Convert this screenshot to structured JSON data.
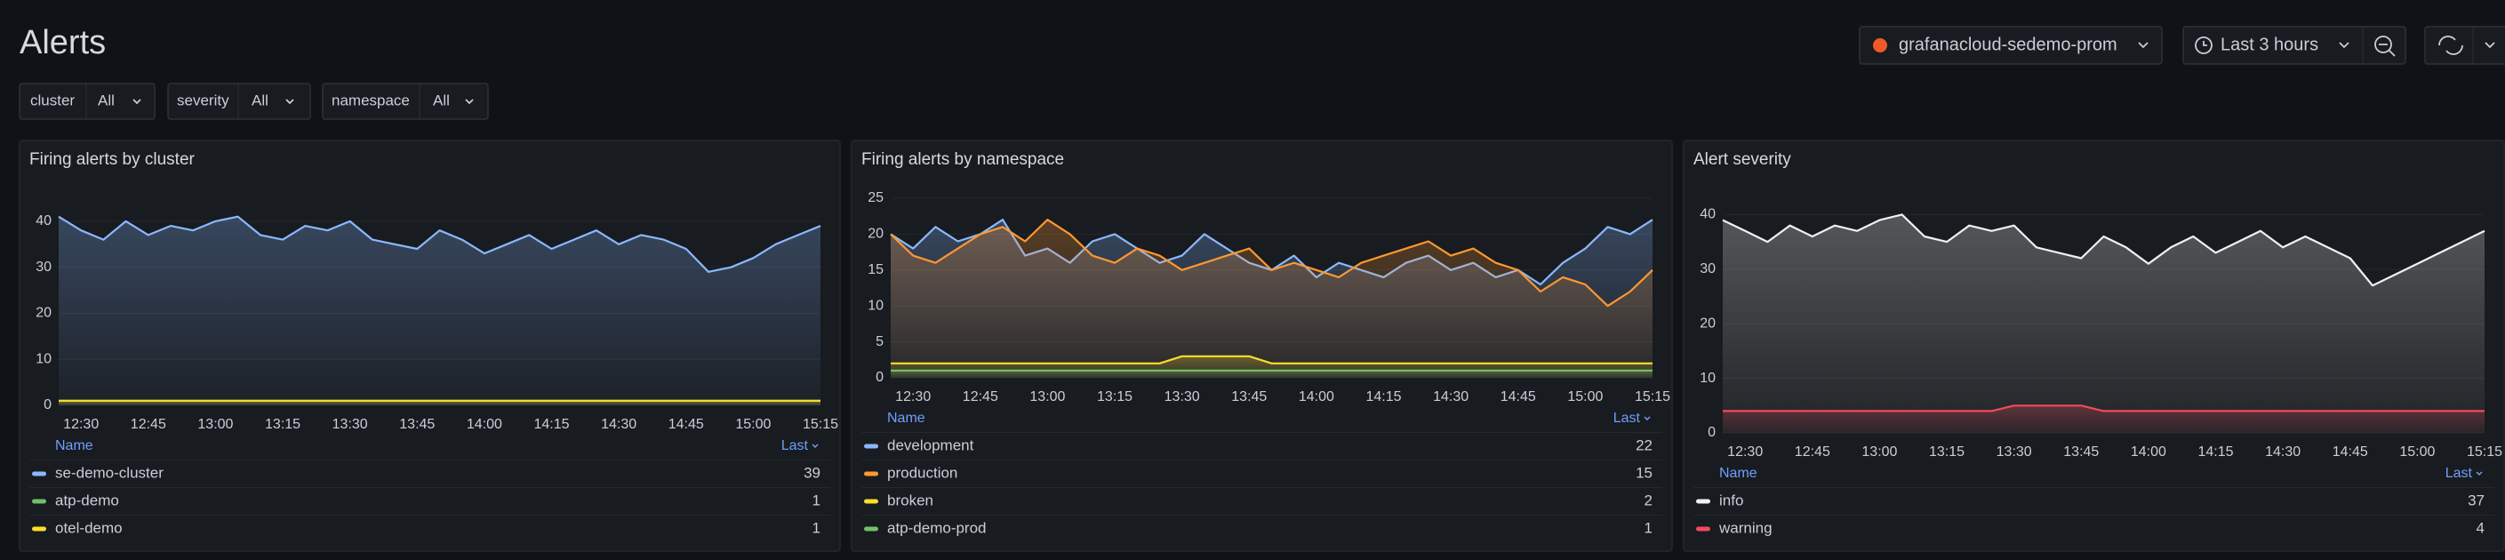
{
  "header": {
    "title": "Alerts",
    "datasource": "grafanacloud-sedemo-prom",
    "time_range": "Last 3 hours"
  },
  "filters": [
    {
      "label": "cluster",
      "value": "All"
    },
    {
      "label": "severity",
      "value": "All"
    },
    {
      "label": "namespace",
      "value": "All"
    }
  ],
  "chart_data": [
    {
      "type": "line",
      "title": "Firing alerts by cluster",
      "x": [
        "12:25",
        "12:30",
        "12:35",
        "12:40",
        "12:45",
        "12:50",
        "12:55",
        "13:00",
        "13:05",
        "13:10",
        "13:15",
        "13:20",
        "13:25",
        "13:30",
        "13:35",
        "13:40",
        "13:45",
        "13:50",
        "13:55",
        "14:00",
        "14:05",
        "14:10",
        "14:15",
        "14:20",
        "14:25",
        "14:30",
        "14:35",
        "14:40",
        "14:45",
        "14:50",
        "14:55",
        "15:00",
        "15:05",
        "15:10",
        "15:15"
      ],
      "xticks": [
        "12:30",
        "12:45",
        "13:00",
        "13:15",
        "13:30",
        "13:45",
        "14:00",
        "14:15",
        "14:30",
        "14:45",
        "15:00",
        "15:15"
      ],
      "ylim": [
        0,
        45
      ],
      "yticks": [
        0,
        10,
        20,
        30,
        40
      ],
      "grid": true,
      "legend_columns": [
        "Name",
        "Last"
      ],
      "series": [
        {
          "name": "se-demo-cluster",
          "color": "#8ab8ff",
          "last": 39,
          "values": [
            41,
            38,
            36,
            40,
            37,
            39,
            38,
            40,
            41,
            37,
            36,
            39,
            38,
            40,
            36,
            35,
            34,
            38,
            36,
            33,
            35,
            37,
            34,
            36,
            38,
            35,
            37,
            36,
            34,
            29,
            30,
            32,
            35,
            37,
            39
          ]
        },
        {
          "name": "atp-demo",
          "color": "#73bf69",
          "last": 1,
          "values": [
            1,
            1,
            1,
            1,
            1,
            1,
            1,
            1,
            1,
            1,
            1,
            1,
            1,
            1,
            1,
            1,
            1,
            1,
            1,
            1,
            1,
            1,
            1,
            1,
            1,
            1,
            1,
            1,
            1,
            1,
            1,
            1,
            1,
            1,
            1
          ]
        },
        {
          "name": "otel-demo",
          "color": "#fade2a",
          "last": 1,
          "values": [
            1,
            1,
            1,
            1,
            1,
            1,
            1,
            1,
            1,
            1,
            1,
            1,
            1,
            1,
            1,
            1,
            1,
            1,
            1,
            1,
            1,
            1,
            1,
            1,
            1,
            1,
            1,
            1,
            1,
            1,
            1,
            1,
            1,
            1,
            1
          ]
        }
      ]
    },
    {
      "type": "line",
      "title": "Firing alerts by namespace",
      "x": [
        "12:25",
        "12:30",
        "12:35",
        "12:40",
        "12:45",
        "12:50",
        "12:55",
        "13:00",
        "13:05",
        "13:10",
        "13:15",
        "13:20",
        "13:25",
        "13:30",
        "13:35",
        "13:40",
        "13:45",
        "13:50",
        "13:55",
        "14:00",
        "14:05",
        "14:10",
        "14:15",
        "14:20",
        "14:25",
        "14:30",
        "14:35",
        "14:40",
        "14:45",
        "14:50",
        "14:55",
        "15:00",
        "15:05",
        "15:10",
        "15:15"
      ],
      "xticks": [
        "12:30",
        "12:45",
        "13:00",
        "13:15",
        "13:30",
        "13:45",
        "14:00",
        "14:15",
        "14:30",
        "14:45",
        "15:00",
        "15:15"
      ],
      "ylim": [
        0,
        25
      ],
      "yticks": [
        0,
        5,
        10,
        15,
        20,
        25
      ],
      "grid": true,
      "legend_columns": [
        "Name",
        "Last"
      ],
      "series": [
        {
          "name": "development",
          "color": "#8ab8ff",
          "last": 22,
          "values": [
            20,
            18,
            21,
            19,
            20,
            22,
            17,
            18,
            16,
            19,
            20,
            18,
            16,
            17,
            20,
            18,
            16,
            15,
            17,
            14,
            16,
            15,
            14,
            16,
            17,
            15,
            16,
            14,
            15,
            13,
            16,
            18,
            21,
            20,
            22
          ]
        },
        {
          "name": "production",
          "color": "#ff9830",
          "last": 15,
          "values": [
            20,
            17,
            16,
            18,
            20,
            21,
            19,
            22,
            20,
            17,
            16,
            18,
            17,
            15,
            16,
            17,
            18,
            15,
            16,
            15,
            14,
            16,
            17,
            18,
            19,
            17,
            18,
            16,
            15,
            12,
            14,
            13,
            10,
            12,
            15
          ]
        },
        {
          "name": "broken",
          "color": "#fade2a",
          "last": 2,
          "values": [
            2,
            2,
            2,
            2,
            2,
            2,
            2,
            2,
            2,
            2,
            2,
            2,
            2,
            3,
            3,
            3,
            3,
            2,
            2,
            2,
            2,
            2,
            2,
            2,
            2,
            2,
            2,
            2,
            2,
            2,
            2,
            2,
            2,
            2,
            2
          ]
        },
        {
          "name": "atp-demo-prod",
          "color": "#73bf69",
          "last": 1,
          "values": [
            1,
            1,
            1,
            1,
            1,
            1,
            1,
            1,
            1,
            1,
            1,
            1,
            1,
            1,
            1,
            1,
            1,
            1,
            1,
            1,
            1,
            1,
            1,
            1,
            1,
            1,
            1,
            1,
            1,
            1,
            1,
            1,
            1,
            1,
            1
          ]
        }
      ]
    },
    {
      "type": "line",
      "title": "Alert severity",
      "x": [
        "12:25",
        "12:30",
        "12:35",
        "12:40",
        "12:45",
        "12:50",
        "12:55",
        "13:00",
        "13:05",
        "13:10",
        "13:15",
        "13:20",
        "13:25",
        "13:30",
        "13:35",
        "13:40",
        "13:45",
        "13:50",
        "13:55",
        "14:00",
        "14:05",
        "14:10",
        "14:15",
        "14:20",
        "14:25",
        "14:30",
        "14:35",
        "14:40",
        "14:45",
        "14:50",
        "14:55",
        "15:00",
        "15:05",
        "15:10",
        "15:15"
      ],
      "xticks": [
        "12:30",
        "12:45",
        "13:00",
        "13:15",
        "13:30",
        "13:45",
        "14:00",
        "14:15",
        "14:30",
        "14:45",
        "15:00",
        "15:15"
      ],
      "ylim": [
        0,
        43
      ],
      "yticks": [
        0,
        10,
        20,
        30,
        40
      ],
      "grid": true,
      "legend_columns": [
        "Name",
        "Last"
      ],
      "series": [
        {
          "name": "info",
          "color": "#f0f0f0",
          "last": 37,
          "values": [
            39,
            37,
            35,
            38,
            36,
            38,
            37,
            39,
            40,
            36,
            35,
            38,
            37,
            38,
            34,
            33,
            32,
            36,
            34,
            31,
            34,
            36,
            33,
            35,
            37,
            34,
            36,
            34,
            32,
            27,
            29,
            31,
            33,
            35,
            37
          ]
        },
        {
          "name": "warning",
          "color": "#f2495c",
          "last": 4,
          "values": [
            4,
            4,
            4,
            4,
            4,
            4,
            4,
            4,
            4,
            4,
            4,
            4,
            4,
            5,
            5,
            5,
            5,
            4,
            4,
            4,
            4,
            4,
            4,
            4,
            4,
            4,
            4,
            4,
            4,
            4,
            4,
            4,
            4,
            4,
            4
          ]
        }
      ]
    }
  ]
}
